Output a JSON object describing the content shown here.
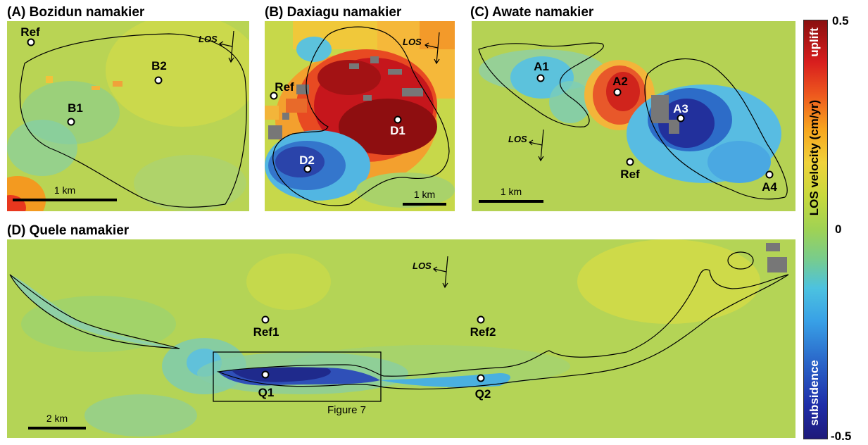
{
  "panels": {
    "a": {
      "title": "(A) Bozidun namakier",
      "points": [
        "Ref",
        "B2",
        "B1"
      ],
      "scale": "1 km",
      "los": "LOS"
    },
    "b": {
      "title": "(B) Daxiagu namakier",
      "points": [
        "Ref",
        "D1",
        "D2"
      ],
      "scale": "1 km",
      "los": "LOS"
    },
    "c": {
      "title": "(C) Awate namakier",
      "points": [
        "A1",
        "A2",
        "A3",
        "Ref",
        "A4"
      ],
      "scale": "1 km",
      "los": "LOS"
    },
    "d": {
      "title": "(D) Quele namakier",
      "points": [
        "Ref1",
        "Ref2",
        "Q1",
        "Q2"
      ],
      "scale": "2 km",
      "los": "LOS",
      "inset_label": "Figure 7"
    }
  },
  "colorbar": {
    "max": "0.5",
    "mid": "0",
    "min": "-0.5",
    "label": "LOS velocity (cm/yr)",
    "top_label": "uplift",
    "bottom_label": "subsidence",
    "colors": [
      "#8a0f0f",
      "#d81e1e",
      "#f7a51e",
      "#f0d23a",
      "#9fd254",
      "#4cc2e0",
      "#2a64c8",
      "#1e1a7a"
    ]
  },
  "colors": {
    "background_field": "#b8d24a",
    "uplift": "#c4161c",
    "subsidence": "#1f2b8c",
    "no_data": "#7a7a7a"
  }
}
